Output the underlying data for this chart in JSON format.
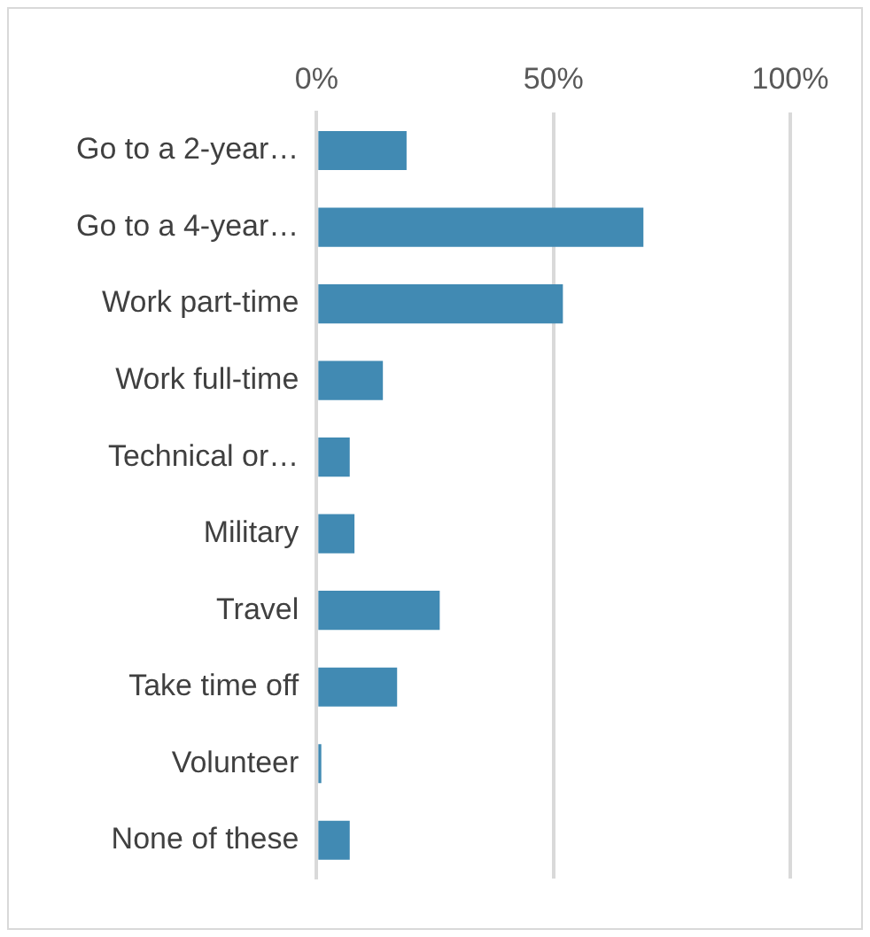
{
  "chart_data": {
    "type": "bar",
    "orientation": "horizontal",
    "categories": [
      "Go to a 2-year…",
      "Go to a 4-year…",
      "Work part-time",
      "Work full-time",
      "Technical or…",
      "Military",
      "Travel",
      "Take time off",
      "Volunteer",
      "None of these"
    ],
    "values": [
      19,
      69,
      52,
      14,
      7,
      8,
      26,
      17,
      1,
      7
    ],
    "color": "#418ab3",
    "xlim": [
      0,
      100
    ],
    "xticks": [
      {
        "value": 0,
        "label": "0%"
      },
      {
        "value": 50,
        "label": "50%"
      },
      {
        "value": 100,
        "label": "100%"
      }
    ],
    "grid": "x",
    "legend": false
  }
}
